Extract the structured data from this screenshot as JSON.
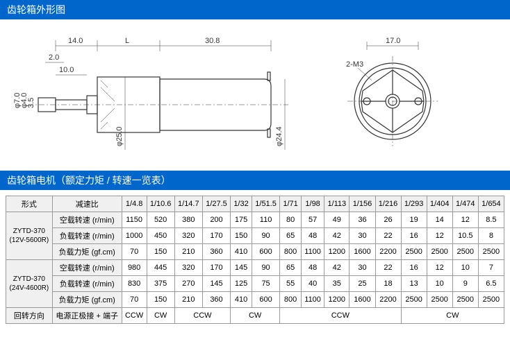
{
  "headers": {
    "diagram": "齿轮箱外形图",
    "table": "齿轮箱电机（额定力矩 / 转速一览表）"
  },
  "dimensions": {
    "d1": "14.0",
    "d2": "L",
    "d3": "30.8",
    "d4": "2.0",
    "d5": "10.0",
    "d6": "φ7.0",
    "d7": "φ4.0",
    "d8": "3.5",
    "d9": "φ25.0",
    "d10": "φ24.4",
    "d11": "17.0",
    "d12": "2-M3"
  },
  "colors": {
    "header_bg": "#0066cc",
    "header_text": "#ffffff",
    "border": "#999999",
    "line": "#333333"
  },
  "table": {
    "col_headers": {
      "type": "形式",
      "ratio": "减速比",
      "ratios": [
        "1/4.8",
        "1/10.6",
        "1/14.7",
        "1/27.5",
        "1/32",
        "1/51.5",
        "1/71",
        "1/98",
        "1/113",
        "1/156",
        "1/216",
        "1/293",
        "1/404",
        "1/474",
        "1/654"
      ]
    },
    "row_labels": {
      "noload": "空载转速 (r/min)",
      "load": "负载转速 (r/min)",
      "torque": "负载力矩 (gf.cm)",
      "rotation": "回转方向",
      "terminal": "电源正极接 + 端子"
    },
    "models": [
      {
        "name": "ZYTD-370",
        "sub": "(12V-5600R)",
        "noload": [
          "1150",
          "520",
          "380",
          "200",
          "175",
          "110",
          "80",
          "57",
          "49",
          "36",
          "26",
          "19",
          "14",
          "12",
          "8.5"
        ],
        "load": [
          "1000",
          "450",
          "320",
          "170",
          "150",
          "90",
          "65",
          "48",
          "42",
          "30",
          "22",
          "16",
          "12",
          "10.5",
          "8"
        ],
        "torque": [
          "70",
          "150",
          "210",
          "360",
          "410",
          "600",
          "800",
          "1100",
          "1200",
          "1600",
          "2200",
          "2500",
          "2500",
          "2500",
          "2500"
        ]
      },
      {
        "name": "ZYTD-370",
        "sub": "(24V-4600R)",
        "noload": [
          "980",
          "445",
          "320",
          "170",
          "145",
          "90",
          "65",
          "48",
          "42",
          "30",
          "22",
          "16",
          "12",
          "10",
          "7"
        ],
        "load": [
          "830",
          "375",
          "270",
          "145",
          "125",
          "75",
          "55",
          "40",
          "35",
          "25",
          "18",
          "13",
          "10",
          "9",
          "6.5"
        ],
        "torque": [
          "70",
          "150",
          "210",
          "360",
          "410",
          "600",
          "800",
          "1100",
          "1200",
          "1600",
          "2200",
          "2500",
          "2500",
          "2500",
          "2500"
        ]
      }
    ],
    "rotation": [
      {
        "span": 1,
        "val": "CCW"
      },
      {
        "span": 1,
        "val": "CW"
      },
      {
        "span": 2,
        "val": "CCW"
      },
      {
        "span": 2,
        "val": "CW"
      },
      {
        "span": 5,
        "val": "CCW"
      },
      {
        "span": 4,
        "val": "CW"
      }
    ]
  }
}
